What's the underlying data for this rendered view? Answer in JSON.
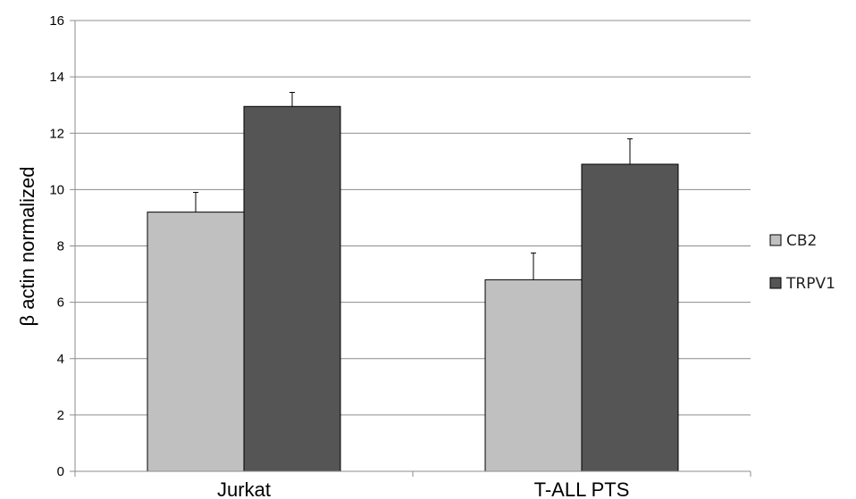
{
  "chart_data": {
    "type": "bar",
    "title": "",
    "xlabel": "",
    "ylabel": "β actin normalized",
    "categories": [
      "Jurkat",
      "T-ALL PTS"
    ],
    "series": [
      {
        "name": "CB2",
        "values": [
          9.2,
          6.8
        ],
        "errors": [
          0.7,
          0.95
        ],
        "color": "#c0c0c0"
      },
      {
        "name": "TRPV1",
        "values": [
          12.95,
          10.9
        ],
        "errors": [
          0.5,
          0.9
        ],
        "color": "#555555"
      }
    ],
    "ylim": [
      0,
      16
    ],
    "yticks": [
      "0",
      "2",
      "4",
      "6",
      "8",
      "10",
      "12",
      "14",
      "16"
    ],
    "grid": true,
    "legend_position": "right"
  }
}
